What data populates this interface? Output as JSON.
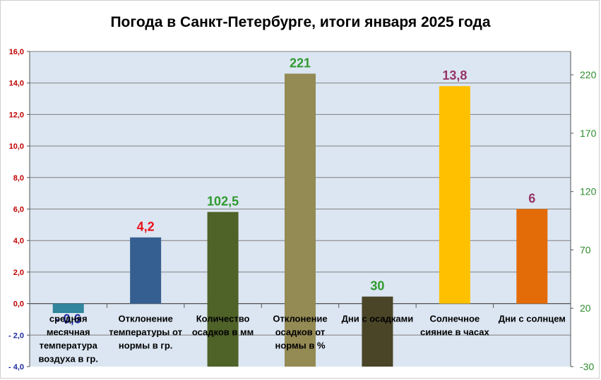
{
  "chart_data": {
    "type": "bar",
    "title": "Погода в Санкт-Петербурге, итоги января 2025 года",
    "left_axis": {
      "ylim": [
        -4.0,
        16.0
      ],
      "ticks": [
        -4,
        -2,
        0,
        2,
        4,
        6,
        8,
        10,
        12,
        14,
        16
      ],
      "tick_labels": [
        "- 4,0",
        "- 2,0",
        "0,0",
        "2,0",
        "4,0",
        "6,0",
        "8,0",
        "10,0",
        "12,0",
        "14,0",
        "16,0"
      ]
    },
    "right_axis": {
      "ylim": [
        -30,
        240
      ],
      "ticks": [
        -30,
        20,
        70,
        120,
        170,
        220
      ],
      "tick_labels": [
        "-30",
        "20",
        "70",
        "120",
        "170",
        "220"
      ]
    },
    "grid": true,
    "bars": [
      {
        "category": "средняя месячная температура воздуха в гр.",
        "category_lines": [
          "средняя",
          "месячная",
          "температура",
          "воздуха в гр."
        ],
        "value": -0.6,
        "axis": "left",
        "label": "- 0,6",
        "color": "#31859c",
        "label_color": "#1f2a9c"
      },
      {
        "category": "Отклонение температуры от нормы в гр.",
        "category_lines": [
          "Отклонение",
          "температуры от",
          "нормы в гр."
        ],
        "value": 4.2,
        "axis": "left",
        "label": "4,2",
        "color": "#365f91",
        "label_color": "#e8111b"
      },
      {
        "category": "Количество осадков в мм",
        "category_lines": [
          "Количество",
          "осадков в мм"
        ],
        "value": 102.5,
        "axis": "right",
        "label": "102,5",
        "color": "#4f6228",
        "label_color": "#2e9a2e"
      },
      {
        "category": "Отклонение осадков от нормы в %",
        "category_lines": [
          "Отклонение",
          "осадков от",
          "нормы в %"
        ],
        "value": 221,
        "axis": "right",
        "label": "221",
        "color": "#948a54",
        "label_color": "#2e9a2e"
      },
      {
        "category": "Дни с осадками",
        "category_lines": [
          "Дни с осадками"
        ],
        "value": 30,
        "axis": "right",
        "label": "30",
        "color": "#4a4527",
        "label_color": "#2e9a2e"
      },
      {
        "category": "Солнечное сияние в часах",
        "category_lines": [
          "Солнечное",
          "сияние в часах"
        ],
        "value": 13.8,
        "axis": "left",
        "label": "13,8",
        "color": "#ffc000",
        "label_color": "#953565"
      },
      {
        "category": "Дни с солнцем",
        "category_lines": [
          "Дни с солнцем"
        ],
        "value": 6,
        "axis": "left",
        "label": "6",
        "color": "#e36c09",
        "label_color": "#953565"
      }
    ],
    "colors": {
      "plot_background": "#dce6f2",
      "gridline": "#7f7f7f",
      "left_axis_positive": "#c00000",
      "left_axis_negative": "#1f2a9c",
      "right_axis": "#2e8b2e"
    }
  }
}
